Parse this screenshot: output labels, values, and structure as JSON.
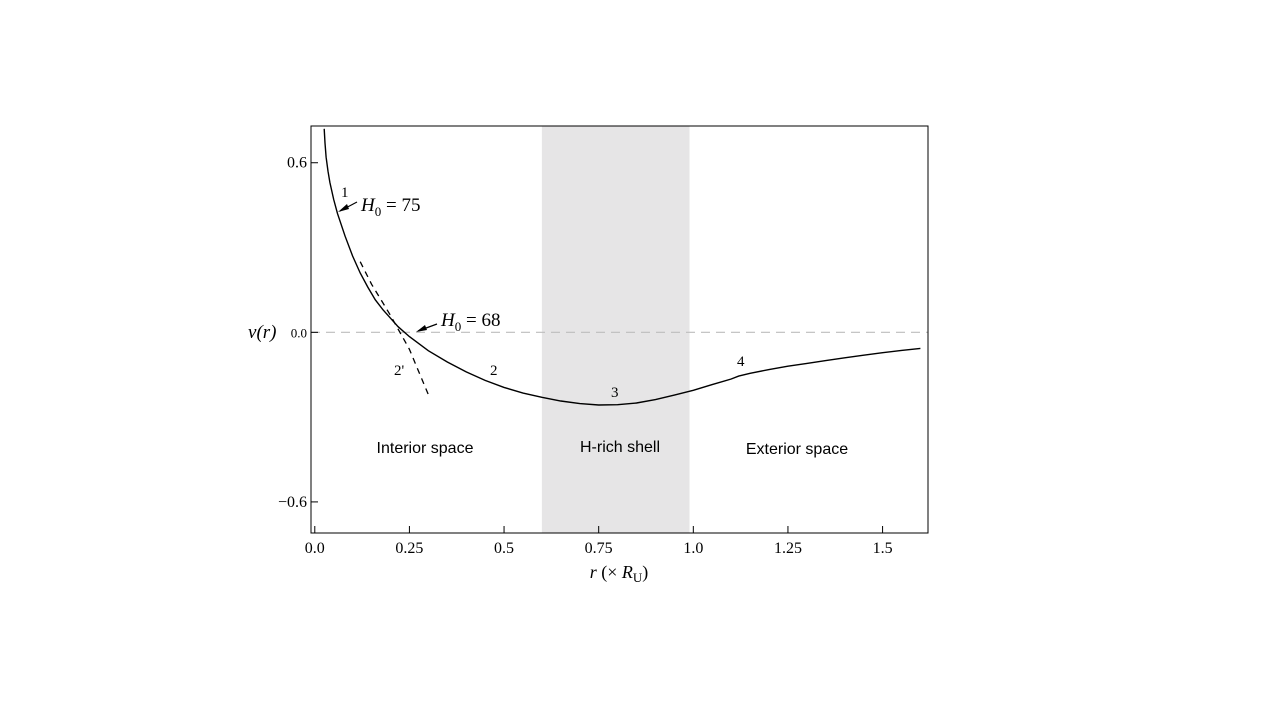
{
  "chart_data": {
    "type": "line",
    "xlabel": {
      "main": "r",
      "paren_open": " (× ",
      "symbol": "R",
      "sub": "U",
      "paren_close": ")"
    },
    "ylabel": {
      "main": "v",
      "arg": "(r)"
    },
    "xlim": [
      -0.01,
      1.62
    ],
    "ylim": [
      -0.71,
      0.73
    ],
    "xticks": [
      0.0,
      0.25,
      0.5,
      0.75,
      1.0,
      1.25,
      1.5
    ],
    "xtick_labels": [
      "0.0",
      "0.25",
      "0.5",
      "0.75",
      "1.0",
      "1.25",
      "1.5"
    ],
    "yticks": [
      0.6,
      0.0,
      -0.6
    ],
    "ytick_labels": [
      "0.6",
      "0.0",
      "−0.6"
    ],
    "grid": false,
    "shaded_band": {
      "x": [
        0.6,
        0.99
      ],
      "label": "H-rich shell",
      "color": "#e6e5e6"
    },
    "zero_line": {
      "y": 0.0,
      "style": "dashed",
      "color": "#bdbdbd"
    },
    "series": [
      {
        "style": "solid",
        "color": "#000000",
        "x": [
          0.025,
          0.027,
          0.03,
          0.035,
          0.04,
          0.05,
          0.06,
          0.08,
          0.1,
          0.12,
          0.14,
          0.16,
          0.18,
          0.2,
          0.22,
          0.25,
          0.3,
          0.35,
          0.4,
          0.45,
          0.5,
          0.55,
          0.6,
          0.65,
          0.7,
          0.75,
          0.8,
          0.85,
          0.9,
          0.95,
          1.0,
          1.05,
          1.1,
          1.12,
          1.15,
          1.2,
          1.25,
          1.3,
          1.35,
          1.4,
          1.45,
          1.5,
          1.55,
          1.6
        ],
        "y": [
          0.72,
          0.67,
          0.62,
          0.57,
          0.53,
          0.47,
          0.42,
          0.34,
          0.27,
          0.21,
          0.16,
          0.115,
          0.08,
          0.05,
          0.02,
          -0.015,
          -0.065,
          -0.105,
          -0.14,
          -0.17,
          -0.195,
          -0.215,
          -0.23,
          -0.243,
          -0.252,
          -0.257,
          -0.256,
          -0.25,
          -0.238,
          -0.222,
          -0.205,
          -0.185,
          -0.165,
          -0.155,
          -0.145,
          -0.132,
          -0.12,
          -0.11,
          -0.1,
          -0.09,
          -0.081,
          -0.072,
          -0.064,
          -0.057
        ]
      },
      {
        "style": "dashed",
        "color": "#000000",
        "x": [
          0.12,
          0.15,
          0.2,
          0.25,
          0.3
        ],
        "y": [
          0.25,
          0.17,
          0.06,
          -0.06,
          -0.22
        ]
      }
    ],
    "annotations": {
      "h0_75": {
        "prefix": "H",
        "sub": "0",
        "text": " = 75"
      },
      "h0_68": {
        "prefix": "H",
        "sub": "0",
        "text": " = 68"
      },
      "label_1": "1",
      "label_2": "2",
      "label_2p": "2'",
      "label_3": "3",
      "label_4": "4"
    },
    "region_labels": {
      "interior": "Interior space",
      "shell": "H-rich shell",
      "exterior": "Exterior space"
    }
  }
}
